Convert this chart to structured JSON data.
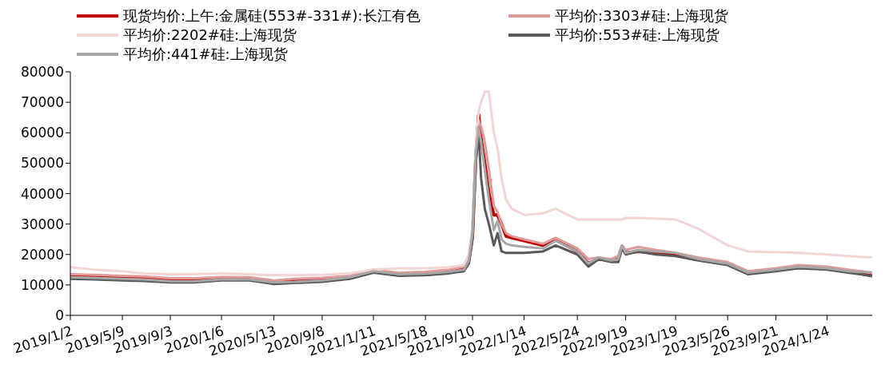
{
  "chart_data": {
    "type": "line",
    "legend": "top",
    "grid": false,
    "marker": "none",
    "line_style": "solid",
    "x": [
      "2019-01-02",
      "2019-03-01",
      "2019-05-09",
      "2019-07-01",
      "2019-09-03",
      "2019-11-01",
      "2020-01-06",
      "2020-03-15",
      "2020-05-13",
      "2020-07-01",
      "2020-09-08",
      "2020-11-15",
      "2021-01-11",
      "2021-03-15",
      "2021-05-18",
      "2021-07-15",
      "2021-08-20",
      "2021-09-01",
      "2021-09-10",
      "2021-09-18",
      "2021-09-25",
      "2021-10-01",
      "2021-10-10",
      "2021-10-20",
      "2021-11-01",
      "2021-11-10",
      "2021-11-20",
      "2021-12-01",
      "2021-12-15",
      "2022-01-14",
      "2022-03-01",
      "2022-04-01",
      "2022-05-24",
      "2022-06-20",
      "2022-07-15",
      "2022-08-15",
      "2022-09-01",
      "2022-09-10",
      "2022-09-19",
      "2022-10-20",
      "2022-12-01",
      "2023-01-19",
      "2023-03-15",
      "2023-05-26",
      "2023-07-15",
      "2023-09-21",
      "2023-11-15",
      "2024-01-24",
      "2024-03-15",
      "2024-05-13"
    ],
    "series": [
      {
        "name": "现货均价:上午:金属硅(553#-331#):长江有色",
        "color": "#c00000",
        "values": [
          13000,
          12800,
          12600,
          12400,
          11800,
          11800,
          12200,
          12000,
          11000,
          11500,
          11800,
          12500,
          14500,
          13500,
          13800,
          14500,
          15500,
          18000,
          26000,
          52000,
          66000,
          58000,
          50000,
          40000,
          33000,
          33000,
          30000,
          26000,
          25500,
          24500,
          23000,
          25000,
          21000,
          17000,
          18500,
          18000,
          19000,
          22500,
          20500,
          21000,
          20500,
          20000,
          18500,
          17000,
          14000,
          15000,
          16000,
          15500,
          14500,
          13000
        ]
      },
      {
        "name": "平均价:3303#硅:上海现货",
        "color": "#e09a9a",
        "values": [
          13500,
          13300,
          13000,
          12800,
          12200,
          12200,
          12600,
          12500,
          11500,
          12000,
          12300,
          13000,
          15000,
          14000,
          14300,
          15000,
          16000,
          19000,
          28000,
          50000,
          64000,
          62000,
          57000,
          48000,
          36000,
          34000,
          30000,
          27000,
          26000,
          25000,
          23500,
          25500,
          22000,
          18500,
          19000,
          18500,
          19500,
          23000,
          21500,
          22500,
          21500,
          20500,
          19000,
          17500,
          14500,
          15500,
          16500,
          16000,
          15000,
          14000
        ]
      },
      {
        "name": "平均价:2202#硅:上海现货",
        "color": "#f2d6d6",
        "values": [
          15800,
          15000,
          14500,
          13800,
          13500,
          13500,
          13800,
          13500,
          13200,
          13200,
          13300,
          13800,
          15000,
          15500,
          15500,
          15800,
          16500,
          20000,
          30000,
          55000,
          67000,
          70000,
          73500,
          73500,
          60000,
          55000,
          45000,
          38000,
          35000,
          33000,
          33500,
          35000,
          31500,
          31500,
          31500,
          31500,
          31500,
          31500,
          32000,
          32000,
          31800,
          31500,
          28500,
          23000,
          21000,
          20800,
          20500,
          20000,
          19500,
          19000
        ]
      },
      {
        "name": "平均价:553#硅:上海现货",
        "color": "#595959",
        "values": [
          12000,
          11800,
          11500,
          11300,
          10800,
          10800,
          11500,
          11500,
          10300,
          10600,
          11000,
          12000,
          14000,
          13000,
          13200,
          13800,
          14500,
          17000,
          25000,
          50000,
          60000,
          45000,
          35000,
          30000,
          23000,
          27000,
          21000,
          20500,
          20500,
          20500,
          21000,
          23000,
          20000,
          16000,
          18500,
          17500,
          17500,
          22000,
          20000,
          21000,
          20000,
          19500,
          18000,
          16500,
          13500,
          14500,
          15500,
          15000,
          14000,
          13000
        ]
      },
      {
        "name": "平均价:441#硅:上海现货",
        "color": "#a6a6a6",
        "values": [
          12500,
          12300,
          12000,
          11800,
          11200,
          11200,
          11800,
          11800,
          10800,
          11000,
          11500,
          12500,
          14500,
          13500,
          13700,
          14300,
          15000,
          18000,
          27000,
          53000,
          62000,
          57000,
          48000,
          38000,
          28000,
          31000,
          25000,
          23500,
          23000,
          22500,
          22000,
          24500,
          21000,
          17000,
          19000,
          18000,
          18500,
          23000,
          20500,
          21500,
          21000,
          20500,
          18500,
          17000,
          14000,
          15000,
          16000,
          15500,
          14500,
          14000
        ]
      }
    ],
    "ylim": [
      0,
      80000
    ],
    "yticks": [
      0,
      10000,
      20000,
      30000,
      40000,
      50000,
      60000,
      70000,
      80000
    ],
    "xlim": [
      "2019-01-02",
      "2024-05-13"
    ],
    "xticks": [
      {
        "value": "2019-01-02",
        "label": "2019/1/2"
      },
      {
        "value": "2019-05-09",
        "label": "2019/5/9"
      },
      {
        "value": "2019-09-03",
        "label": "2019/9/3"
      },
      {
        "value": "2020-01-06",
        "label": "2020/1/6"
      },
      {
        "value": "2020-05-13",
        "label": "2020/5/13"
      },
      {
        "value": "2020-09-08",
        "label": "2020/9/8"
      },
      {
        "value": "2021-01-11",
        "label": "2021/1/11"
      },
      {
        "value": "2021-05-18",
        "label": "2021/5/18"
      },
      {
        "value": "2021-09-10",
        "label": "2021/9/10"
      },
      {
        "value": "2022-01-14",
        "label": "2022/1/14"
      },
      {
        "value": "2022-05-24",
        "label": "2022/5/24"
      },
      {
        "value": "2022-09-19",
        "label": "2022/9/19"
      },
      {
        "value": "2023-01-19",
        "label": "2023/1/19"
      },
      {
        "value": "2023-05-26",
        "label": "2023/5/26"
      },
      {
        "value": "2023-09-21",
        "label": "2023/9/21"
      },
      {
        "value": "2024-01-24",
        "label": "2024/1/24"
      }
    ]
  }
}
